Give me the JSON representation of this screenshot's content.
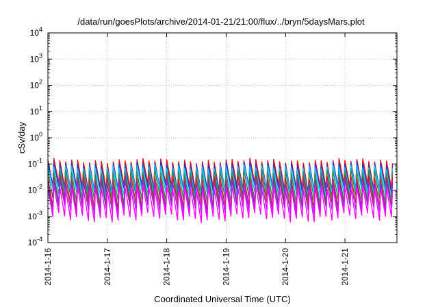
{
  "chart_data": {
    "type": "line",
    "title": "/data/run/goesPlots/archive/2014-01-21/21:00/flux/../bryn/5daysMars.plot",
    "xlabel": "Coordinated Universal Time (UTC)",
    "ylabel": "cSv/day",
    "y_scale": "log",
    "ylim": [
      0.0001,
      10000
    ],
    "y_ticks": [
      {
        "base": "10",
        "exp": "-4"
      },
      {
        "base": "10",
        "exp": "-3"
      },
      {
        "base": "10",
        "exp": "-2"
      },
      {
        "base": "10",
        "exp": "-1"
      },
      {
        "base": "10",
        "exp": "0"
      },
      {
        "base": "10",
        "exp": "1"
      },
      {
        "base": "10",
        "exp": "2"
      },
      {
        "base": "10",
        "exp": "3"
      },
      {
        "base": "10",
        "exp": "4"
      }
    ],
    "xlim": [
      "2014-01-16T00:00",
      "2014-01-21T21:00"
    ],
    "x_ticks": [
      "2014-1-16",
      "2014-1-17",
      "2014-1-18",
      "2014-1-19",
      "2014-1-20",
      "2014-1-21"
    ],
    "grid": true,
    "oscillation_period_hours": 2.4,
    "series": [
      {
        "color": "#ff0000",
        "peak": 0.13,
        "trough": 0.012
      },
      {
        "color": "#1f3fcf",
        "peak": 0.1,
        "trough": 0.01
      },
      {
        "color": "#00c8ff",
        "peak": 0.075,
        "trough": 0.007
      },
      {
        "color": "#2e8b57",
        "peak": 0.05,
        "trough": 0.004
      },
      {
        "color": "#cc2222",
        "peak": 0.03,
        "trough": 0.0025
      },
      {
        "color": "#8a2be2",
        "peak": 0.02,
        "trough": 0.0018
      },
      {
        "color": "#ff00ff",
        "peak": 0.012,
        "trough": 0.0009
      }
    ]
  }
}
